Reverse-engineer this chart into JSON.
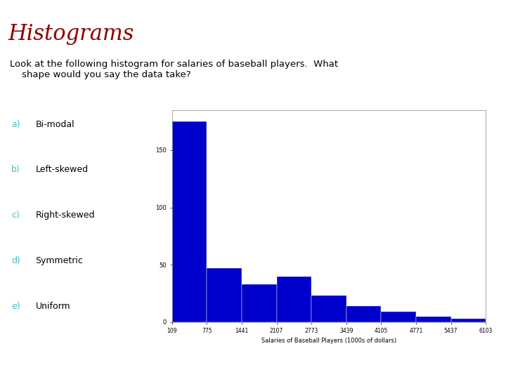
{
  "title": "Histograms",
  "title_color": "#8B0000",
  "title_fontsize": 22,
  "header_bar_color": "#40E0D0",
  "question_line1": "Look at the following histogram for salaries of baseball players.  What",
  "question_line2": "    shape would you say the data take?",
  "question_fontsize": 9.5,
  "options": [
    "Bi-modal",
    "Left-skewed",
    "Right-skewed",
    "Symmetric",
    "Uniform"
  ],
  "option_labels": [
    "a)",
    "b)",
    "c)",
    "d)",
    "e)"
  ],
  "option_label_color": "#40C0C0",
  "option_fontsize": 9,
  "hist_bar_color": "#0000CC",
  "hist_xlabel": "Salaries of Baseball Players (1000s of dollars)",
  "hist_xlabel_fontsize": 6,
  "hist_xtick_labels": [
    "109",
    "775",
    "1441",
    "2107",
    "2773",
    "3439",
    "4105",
    "4771",
    "5437",
    "6103"
  ],
  "hist_bin_edges": [
    109,
    775,
    1441,
    2107,
    2773,
    3439,
    4105,
    4771,
    5437,
    6103
  ],
  "hist_values": [
    175,
    47,
    33,
    40,
    23,
    14,
    9,
    5,
    3
  ],
  "hist_yticks": [
    0,
    50,
    100,
    150
  ],
  "hist_ylim": [
    0,
    185
  ],
  "background_color": "#FFFFFF"
}
